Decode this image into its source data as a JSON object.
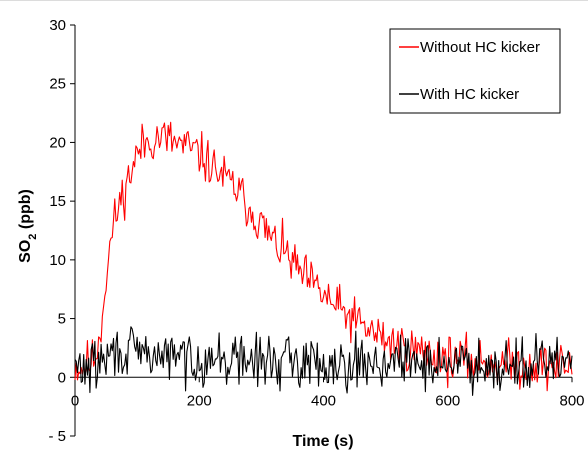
{
  "chart_data": {
    "type": "line",
    "title": "",
    "xlabel": "Time (s)",
    "ylabel_main": "SO",
    "ylabel_sub": "2",
    "ylabel_unit": " (ppb)",
    "xlim": [
      0,
      800
    ],
    "ylim": [
      -5,
      30
    ],
    "x_ticks": [
      0,
      200,
      400,
      600,
      800
    ],
    "x_tick_labels": [
      "0",
      "200",
      "400",
      "600",
      "800"
    ],
    "y_ticks": [
      -5,
      0,
      5,
      10,
      15,
      20,
      25,
      30
    ],
    "y_tick_labels": [
      "- 5",
      "0",
      "5",
      "10",
      "15",
      "20",
      "25",
      "30"
    ],
    "grid": false,
    "legend_position": "top-right",
    "x_step": 2,
    "series": [
      {
        "name": "Without HC kicker",
        "color": "#ff0000",
        "envelope_x": [
          0,
          10,
          20,
          30,
          40,
          50,
          60,
          70,
          80,
          90,
          100,
          110,
          120,
          140,
          160,
          180,
          200,
          220,
          240,
          260,
          280,
          300,
          320,
          340,
          360,
          380,
          400,
          420,
          440,
          460,
          480,
          500,
          520,
          540,
          560,
          580,
          600,
          650,
          700,
          750,
          800
        ],
        "envelope_y": [
          1.0,
          0.8,
          1.2,
          1.5,
          3.5,
          8.5,
          12.5,
          14.5,
          16.0,
          17.5,
          19.0,
          19.8,
          20.2,
          20.5,
          20.0,
          19.6,
          19.0,
          18.0,
          17.0,
          16.0,
          14.5,
          13.0,
          11.5,
          10.5,
          9.0,
          8.0,
          7.0,
          6.0,
          5.2,
          4.5,
          3.8,
          3.2,
          2.8,
          2.4,
          2.1,
          1.9,
          1.6,
          1.3,
          1.1,
          1.0,
          1.0
        ],
        "noise": 1.6,
        "seed": 11
      },
      {
        "name": "With HC kicker",
        "color": "#000000",
        "envelope_x": [
          0,
          20,
          40,
          60,
          80,
          100,
          150,
          200,
          300,
          400,
          500,
          600,
          700,
          800
        ],
        "envelope_y": [
          0.8,
          0.8,
          1.2,
          2.0,
          2.2,
          2.0,
          1.8,
          1.6,
          1.4,
          1.3,
          1.3,
          1.2,
          1.2,
          1.2
        ],
        "noise": 1.8,
        "seed": 29
      }
    ]
  }
}
